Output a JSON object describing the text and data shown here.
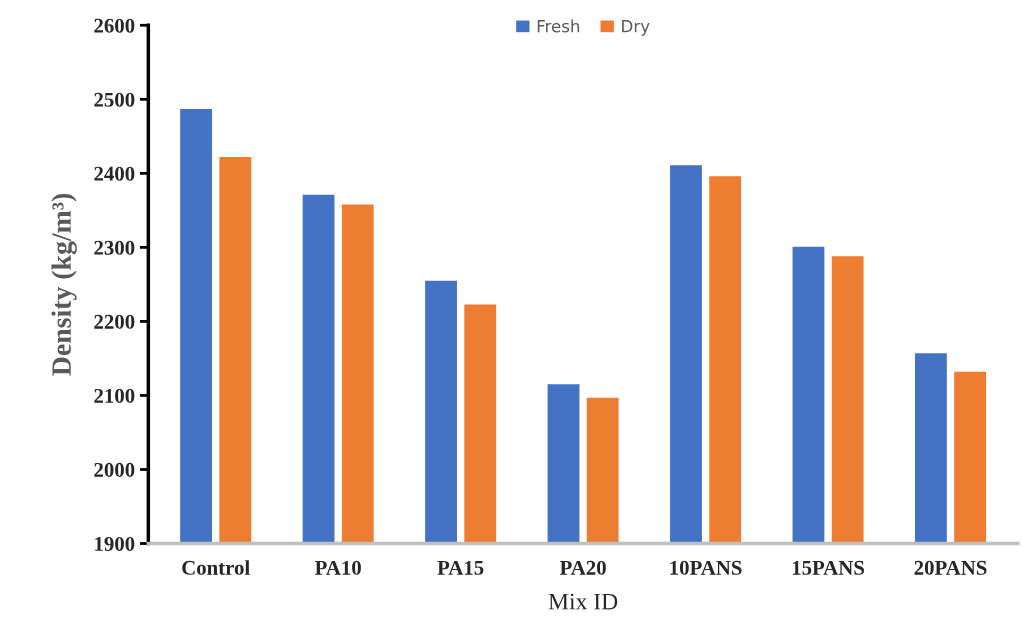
{
  "chart_data": {
    "type": "bar",
    "xlabel": "Mix ID",
    "ylabel": "Density (kg/m³)",
    "categories": [
      "Control",
      "PA10",
      "PA15",
      "PA20",
      "10PANS",
      "15PANS",
      "20PANS"
    ],
    "series": [
      {
        "name": "Fresh",
        "color": "#4472c4",
        "values": [
          2487,
          2371,
          2255,
          2115,
          2411,
          2301,
          2157
        ]
      },
      {
        "name": "Dry",
        "color": "#ed7d31",
        "values": [
          2422,
          2358,
          2223,
          2097,
          2396,
          2288,
          2132
        ]
      }
    ],
    "ylim": [
      1900,
      2600
    ],
    "yticks": [
      1900,
      2000,
      2100,
      2200,
      2300,
      2400,
      2500,
      2600
    ],
    "grid": false,
    "legend": "top"
  }
}
